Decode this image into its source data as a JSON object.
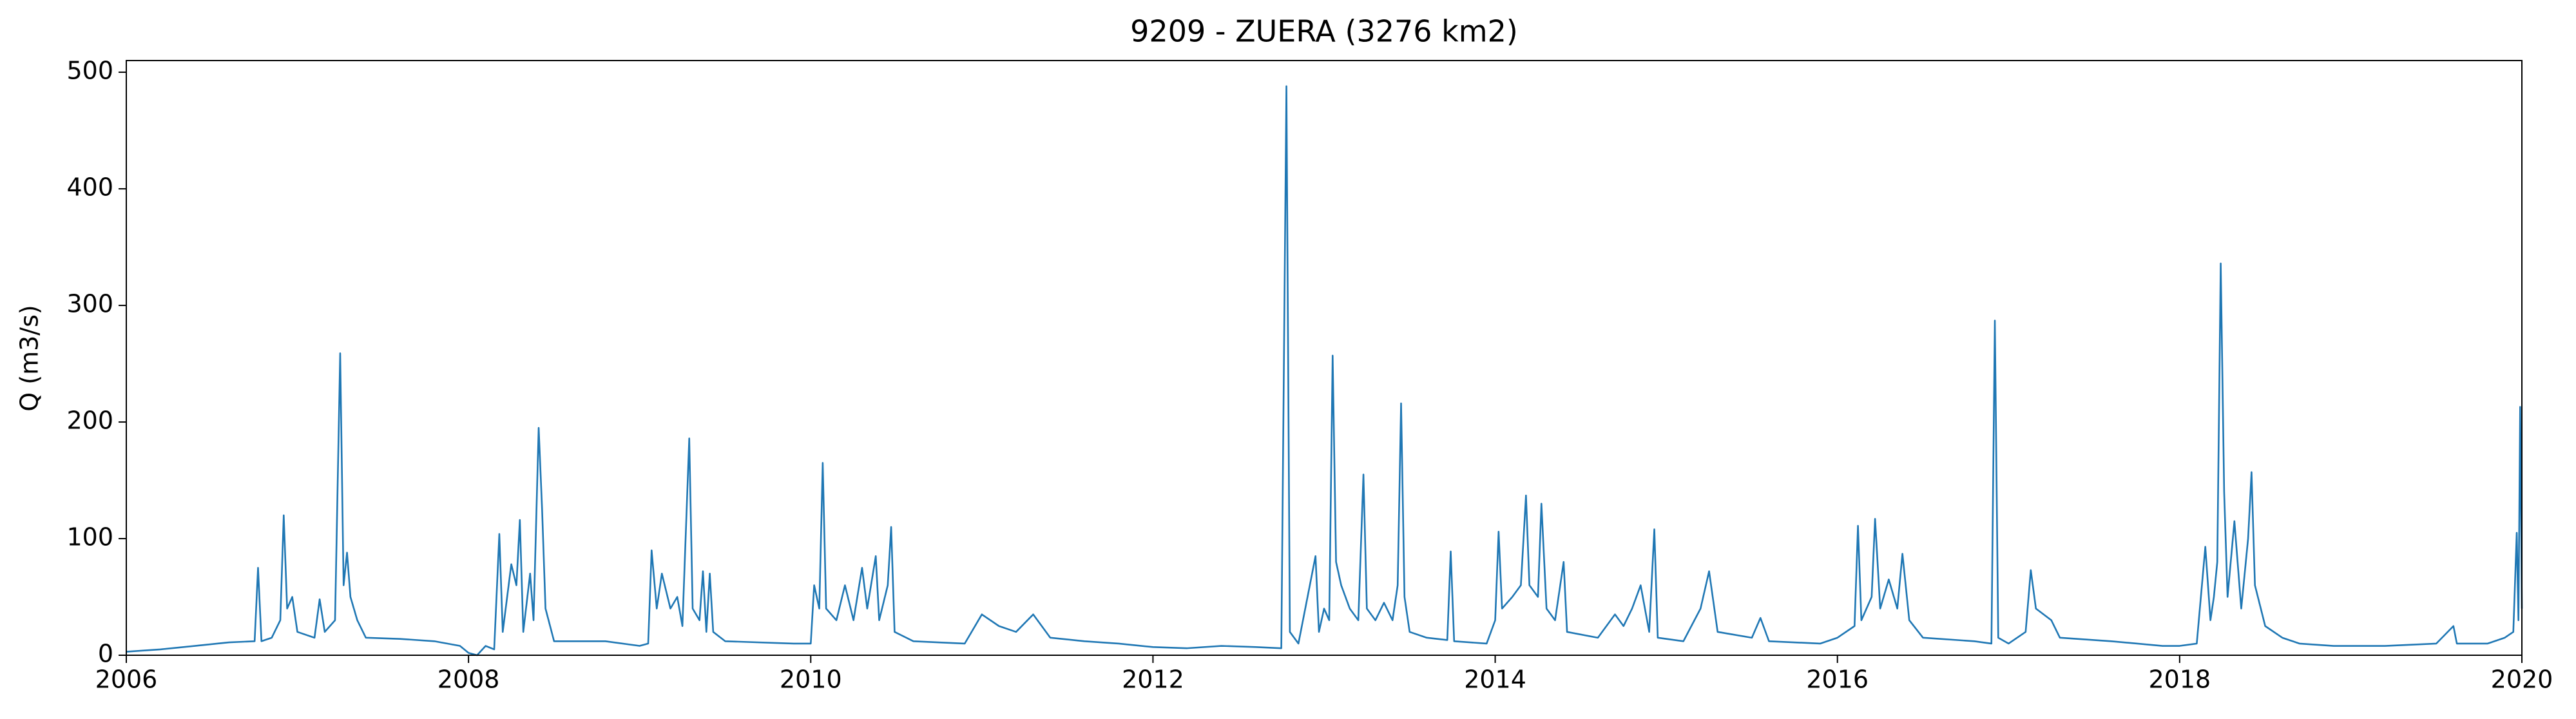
{
  "chart_data": {
    "type": "line",
    "title": "9209 - ZUERA (3276 km2)",
    "ylabel": "Q (m3/s)",
    "xlim": [
      2006,
      2020
    ],
    "xticks": [
      2006,
      2008,
      2010,
      2012,
      2014,
      2016,
      2018,
      2020
    ],
    "ylim": [
      0,
      510
    ],
    "yticks": [
      0,
      100,
      200,
      300,
      400,
      500
    ],
    "grid": false,
    "series": [
      {
        "name": "Q",
        "color": "#1f77b4",
        "x": [
          2006.0,
          2006.2,
          2006.4,
          2006.6,
          2006.75,
          2006.77,
          2006.79,
          2006.85,
          2006.9,
          2006.92,
          2006.94,
          2006.97,
          2007.0,
          2007.1,
          2007.13,
          2007.16,
          2007.22,
          2007.25,
          2007.27,
          2007.29,
          2007.31,
          2007.35,
          2007.4,
          2007.6,
          2007.8,
          2007.95,
          2008.0,
          2008.05,
          2008.1,
          2008.15,
          2008.18,
          2008.2,
          2008.25,
          2008.28,
          2008.3,
          2008.32,
          2008.36,
          2008.38,
          2008.41,
          2008.43,
          2008.45,
          2008.5,
          2008.8,
          2009.0,
          2009.05,
          2009.07,
          2009.1,
          2009.13,
          2009.18,
          2009.22,
          2009.25,
          2009.29,
          2009.31,
          2009.35,
          2009.37,
          2009.39,
          2009.41,
          2009.43,
          2009.5,
          2009.9,
          2010.0,
          2010.02,
          2010.05,
          2010.07,
          2010.09,
          2010.15,
          2010.2,
          2010.25,
          2010.3,
          2010.33,
          2010.38,
          2010.4,
          2010.45,
          2010.47,
          2010.49,
          2010.6,
          2010.9,
          2011.0,
          2011.1,
          2011.2,
          2011.3,
          2011.4,
          2011.6,
          2011.8,
          2012.0,
          2012.2,
          2012.4,
          2012.6,
          2012.75,
          2012.78,
          2012.8,
          2012.85,
          2012.95,
          2012.97,
          2013.0,
          2013.03,
          2013.05,
          2013.07,
          2013.1,
          2013.15,
          2013.2,
          2013.23,
          2013.25,
          2013.3,
          2013.35,
          2013.4,
          2013.43,
          2013.45,
          2013.47,
          2013.5,
          2013.6,
          2013.72,
          2013.74,
          2013.76,
          2013.95,
          2014.0,
          2014.02,
          2014.04,
          2014.1,
          2014.15,
          2014.18,
          2014.2,
          2014.25,
          2014.27,
          2014.3,
          2014.35,
          2014.4,
          2014.42,
          2014.6,
          2014.7,
          2014.75,
          2014.8,
          2014.85,
          2014.9,
          2014.93,
          2014.95,
          2015.1,
          2015.2,
          2015.25,
          2015.3,
          2015.5,
          2015.55,
          2015.6,
          2015.9,
          2016.0,
          2016.1,
          2016.12,
          2016.14,
          2016.2,
          2016.22,
          2016.25,
          2016.3,
          2016.35,
          2016.38,
          2016.42,
          2016.5,
          2016.8,
          2016.9,
          2016.92,
          2016.94,
          2017.0,
          2017.1,
          2017.13,
          2017.16,
          2017.25,
          2017.3,
          2017.6,
          2017.9,
          2018.0,
          2018.1,
          2018.15,
          2018.18,
          2018.2,
          2018.22,
          2018.24,
          2018.26,
          2018.28,
          2018.32,
          2018.36,
          2018.4,
          2018.42,
          2018.44,
          2018.5,
          2018.6,
          2018.7,
          2018.9,
          2019.2,
          2019.5,
          2019.6,
          2019.62,
          2019.8,
          2019.9,
          2019.95,
          2019.97,
          2019.98,
          2019.99,
          2020.0
        ],
        "values": [
          3,
          5,
          8,
          11,
          12,
          75,
          12,
          15,
          30,
          120,
          40,
          50,
          20,
          15,
          48,
          20,
          30,
          259,
          60,
          88,
          50,
          30,
          15,
          14,
          12,
          8,
          2,
          0,
          8,
          5,
          104,
          20,
          78,
          60,
          116,
          20,
          70,
          30,
          195,
          125,
          40,
          12,
          12,
          8,
          10,
          90,
          40,
          70,
          40,
          50,
          25,
          186,
          40,
          30,
          72,
          20,
          70,
          20,
          12,
          10,
          10,
          60,
          40,
          165,
          40,
          30,
          60,
          30,
          75,
          40,
          85,
          30,
          60,
          110,
          20,
          12,
          10,
          35,
          25,
          20,
          35,
          15,
          12,
          10,
          7,
          6,
          8,
          7,
          6,
          488,
          20,
          10,
          85,
          20,
          40,
          30,
          257,
          80,
          60,
          40,
          30,
          155,
          40,
          30,
          45,
          30,
          60,
          216,
          50,
          20,
          15,
          13,
          89,
          12,
          10,
          30,
          106,
          40,
          50,
          60,
          137,
          60,
          50,
          130,
          40,
          30,
          80,
          20,
          15,
          35,
          25,
          40,
          60,
          20,
          108,
          15,
          12,
          40,
          72,
          20,
          15,
          32,
          12,
          10,
          15,
          25,
          111,
          30,
          50,
          117,
          40,
          65,
          40,
          87,
          30,
          15,
          12,
          10,
          287,
          15,
          10,
          20,
          73,
          40,
          30,
          15,
          12,
          8,
          8,
          10,
          93,
          30,
          50,
          80,
          336,
          140,
          50,
          115,
          40,
          100,
          157,
          60,
          25,
          15,
          10,
          8,
          8,
          10,
          25,
          10,
          10,
          15,
          20,
          105,
          30,
          213,
          40
        ]
      }
    ]
  }
}
